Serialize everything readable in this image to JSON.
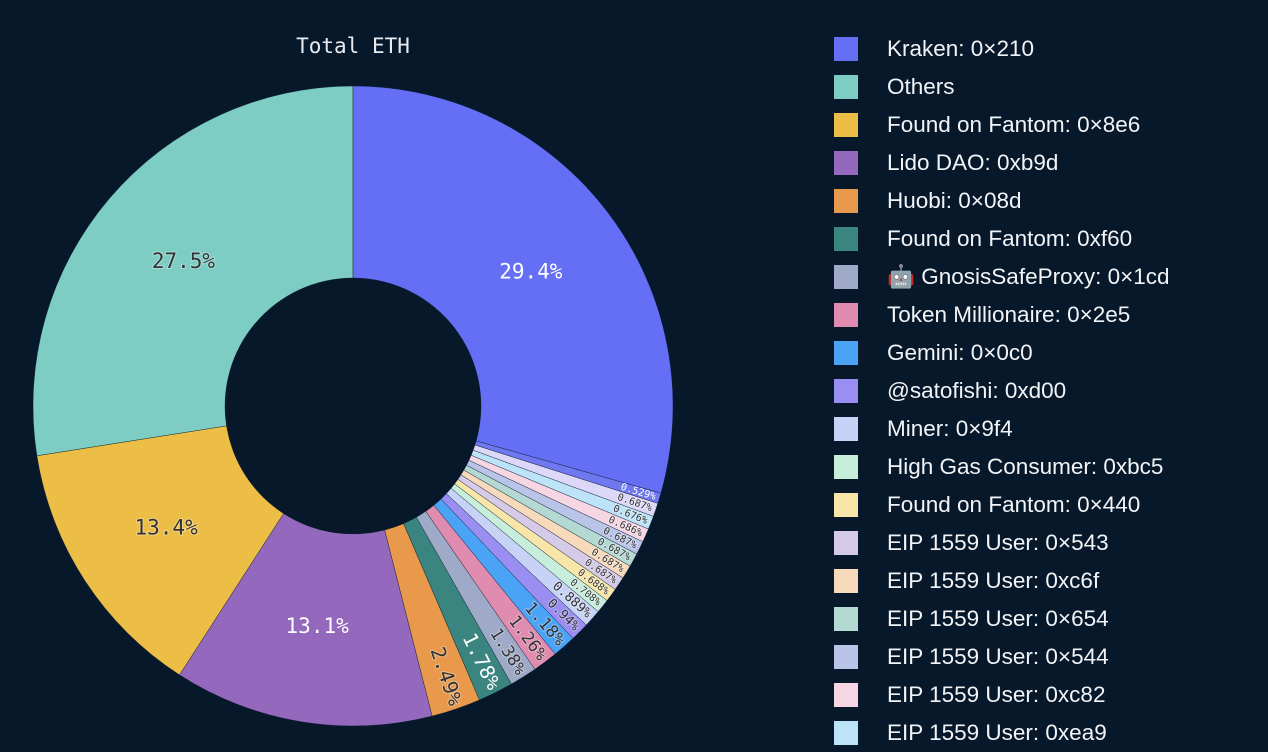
{
  "chart_data": {
    "type": "pie",
    "hole": 0.4,
    "title": "Total ETH",
    "direction": "counterclockwise-from-top",
    "slices": [
      {
        "name": "Others",
        "value": 27.5,
        "label": "27.5%",
        "color": "#7dcdc5",
        "dark_text": true
      },
      {
        "name": "Found on Fantom: 0×8e6",
        "value": 13.4,
        "label": "13.4%",
        "color": "#ecbe45",
        "dark_text": true
      },
      {
        "name": "Lido DAO: 0xb9d",
        "value": 13.1,
        "label": "13.1%",
        "color": "#9468bd",
        "dark_text": false
      },
      {
        "name": "Huobi: 0×08d",
        "value": 2.49,
        "label": "2.49%",
        "color": "#e8994c",
        "dark_text": true
      },
      {
        "name": "Found on Fantom: 0xf60",
        "value": 1.78,
        "label": "1.78%",
        "color": "#3a8580",
        "dark_text": false
      },
      {
        "name": "🤖 GnosisSafeProxy: 0×1cd",
        "value": 1.38,
        "label": "1.38%",
        "color": "#9eaac7",
        "dark_text": true
      },
      {
        "name": "Token Millionaire: 0×2e5",
        "value": 1.26,
        "label": "1.26%",
        "color": "#e08bb0",
        "dark_text": true
      },
      {
        "name": "Gemini: 0×0c0",
        "value": 1.18,
        "label": "1.18%",
        "color": "#4aa3f5",
        "dark_text": true
      },
      {
        "name": "@satofishi: 0xd00",
        "value": 0.94,
        "label": "0.94%",
        "color": "#9b8ef2",
        "dark_text": true
      },
      {
        "name": "Miner: 0×9f4",
        "value": 0.889,
        "label": "0.889%",
        "color": "#c7d2f7",
        "dark_text": true
      },
      {
        "name": "High Gas Consumer: 0xbc5",
        "value": 0.708,
        "label": "0.708%",
        "color": "#c7eddb",
        "dark_text": true
      },
      {
        "name": "Found on Fantom: 0×440",
        "value": 0.688,
        "label": "0.688%",
        "color": "#f7e6a8",
        "dark_text": true
      },
      {
        "name": "EIP 1559 User: 0×543",
        "value": 0.687,
        "label": "0.687%",
        "color": "#d5cae8",
        "dark_text": true
      },
      {
        "name": "EIP 1559 User: 0xc6f",
        "value": 0.687,
        "label": "0.687%",
        "color": "#f7d9bb",
        "dark_text": true
      },
      {
        "name": "EIP 1559 User: 0×654",
        "value": 0.687,
        "label": "0.687%",
        "color": "#b4d9d3",
        "dark_text": true
      },
      {
        "name": "EIP 1559 User: 0×544",
        "value": 0.687,
        "label": "0.687%",
        "color": "#b9c4e8",
        "dark_text": true
      },
      {
        "name": "EIP 1559 User: 0xc82",
        "value": 0.686,
        "label": "0.686%",
        "color": "#f7d6e4",
        "dark_text": true
      },
      {
        "name": "EIP 1559 User: 0xea9",
        "value": 0.676,
        "label": "0.676%",
        "color": "#bde3f8",
        "dark_text": true
      },
      {
        "name": null,
        "value": 0.687,
        "label": "0.687%",
        "color": "#ddd8f7",
        "dark_text": true
      },
      {
        "name": null,
        "value": 0.529,
        "label": "0.529%",
        "color": "#6f78ee",
        "dark_text": false
      },
      {
        "name": "Kraken: 0×210",
        "value": 29.4,
        "label": "29.4%",
        "color": "#646ff6",
        "dark_text": false
      }
    ],
    "legend_order": [
      20,
      0,
      1,
      2,
      3,
      4,
      5,
      6,
      7,
      8,
      9,
      10,
      11,
      12,
      13,
      14,
      15,
      16,
      17
    ],
    "legend_placement": "right"
  }
}
